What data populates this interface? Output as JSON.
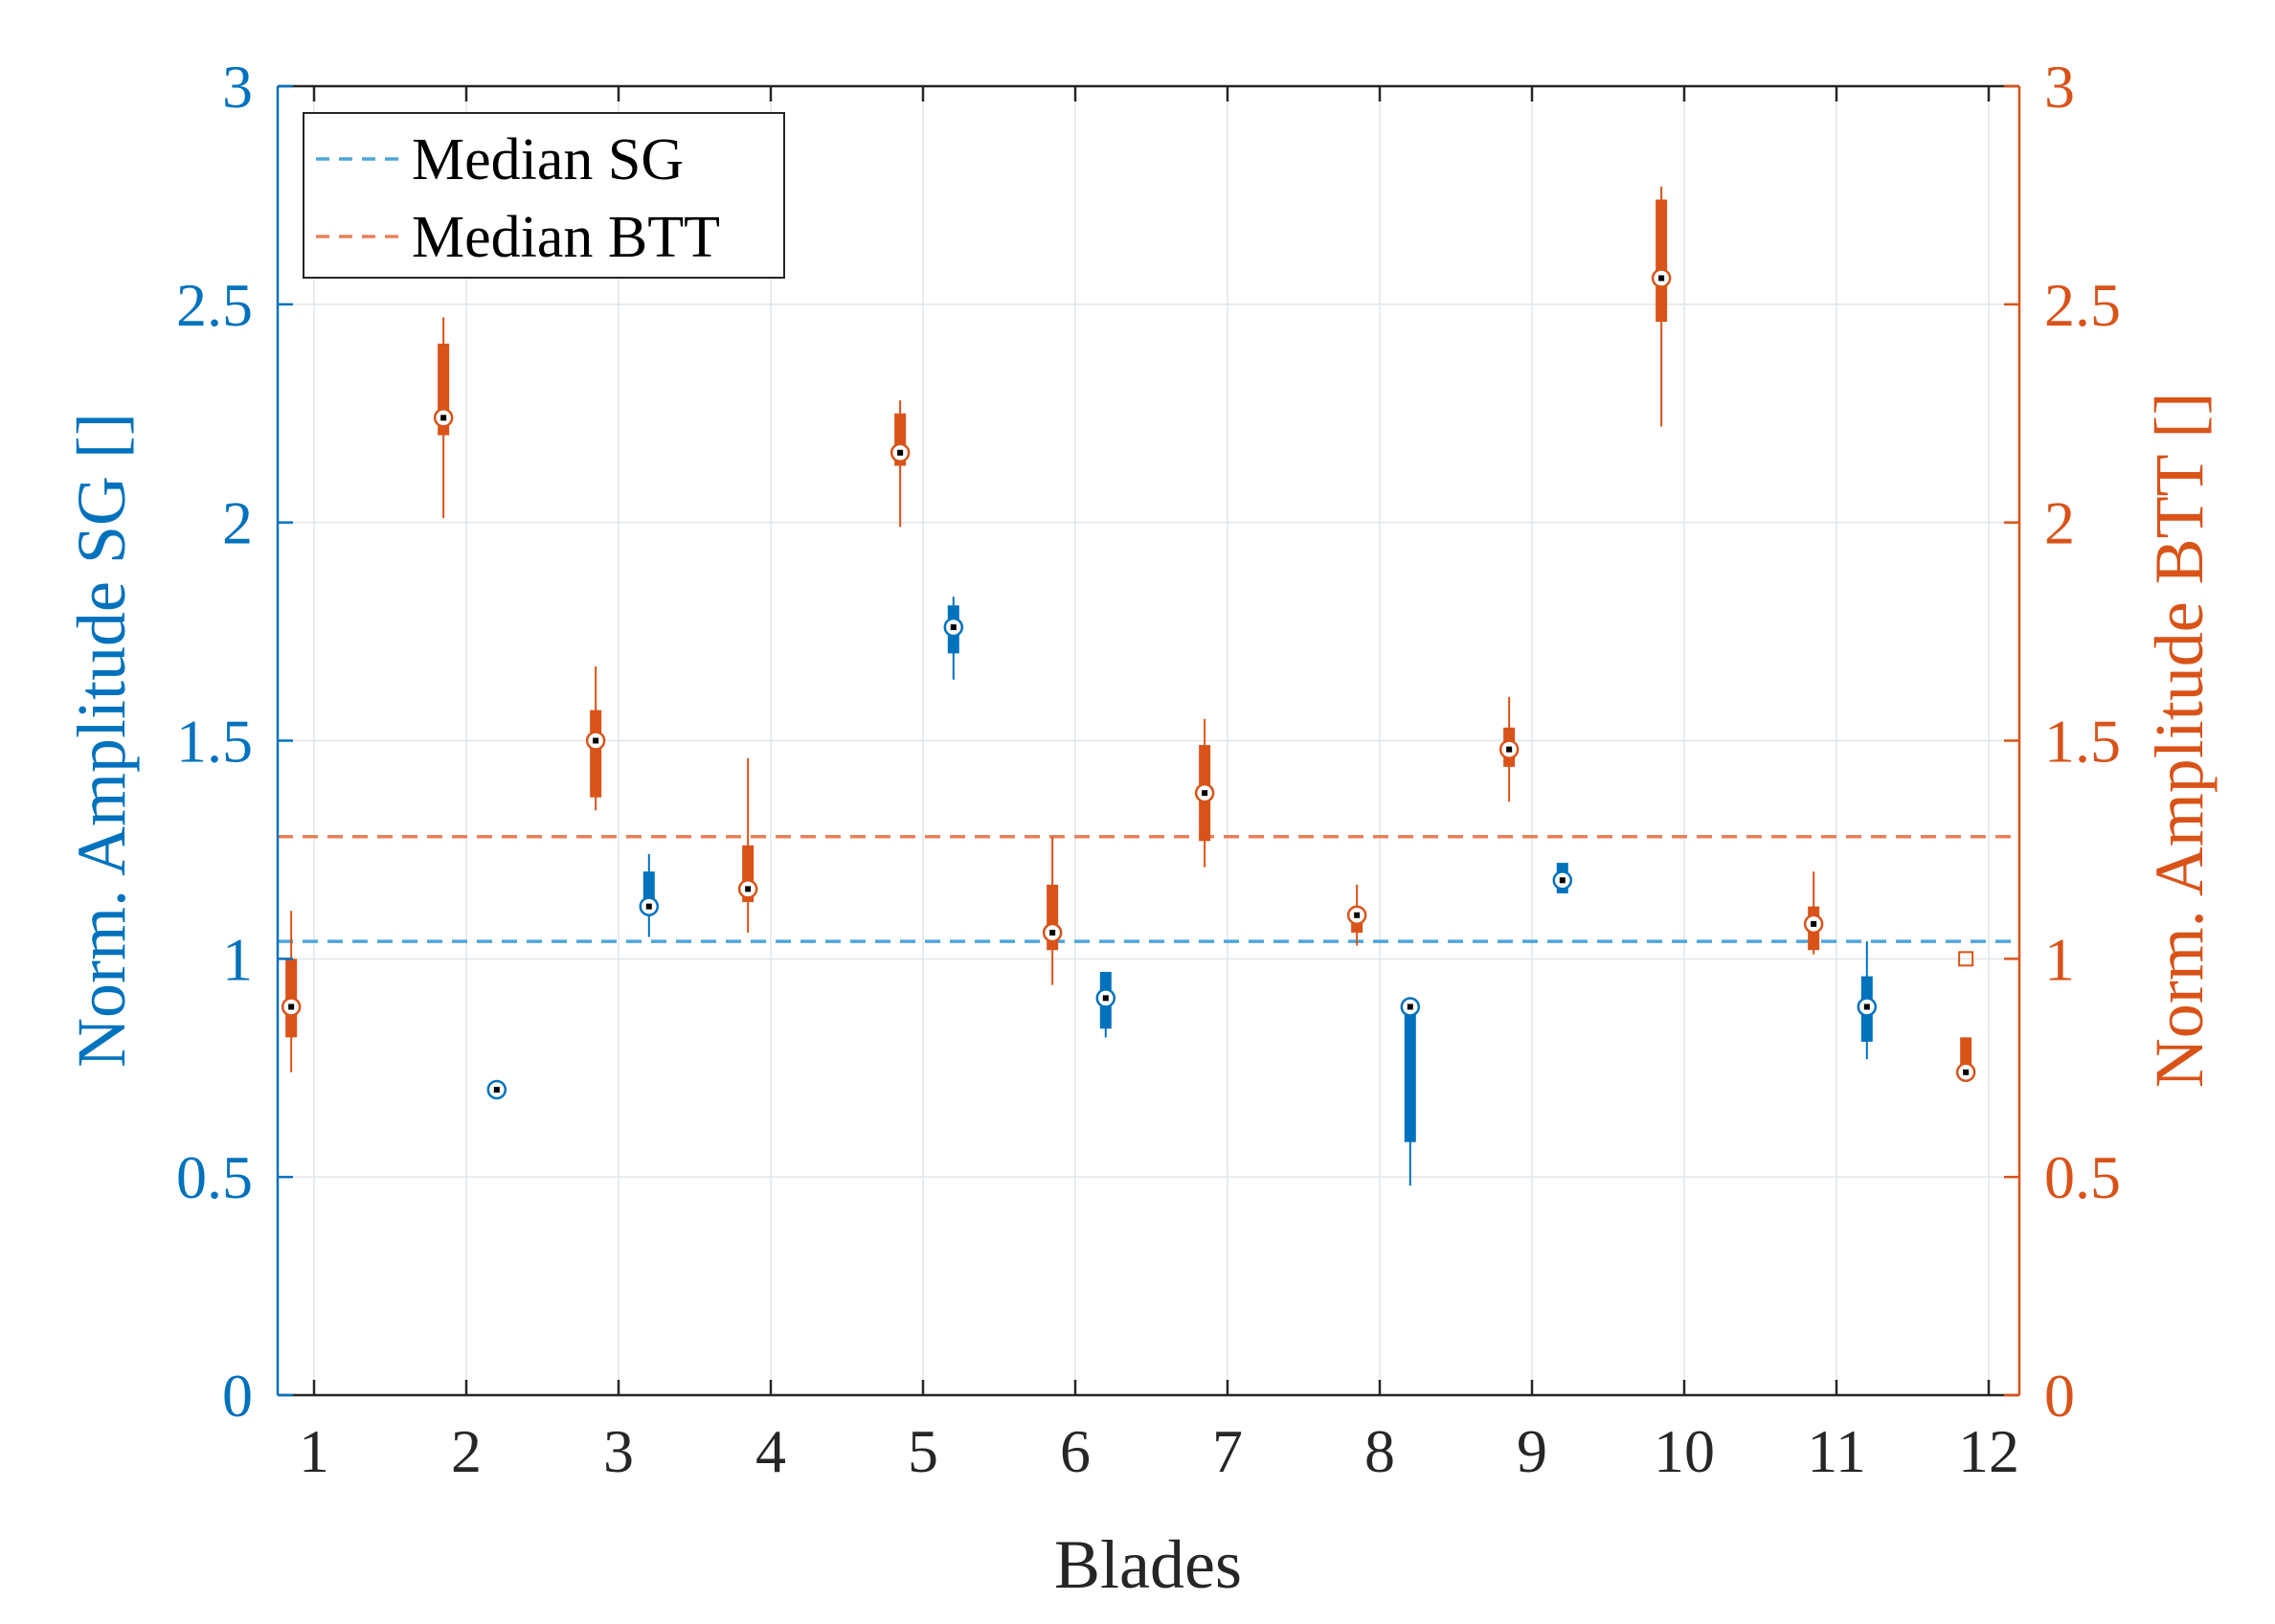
{
  "chart_data": {
    "type": "box",
    "xlabel": "Blades",
    "ylabel_left": "Norm. Amplitude SG []",
    "ylabel_right": "Norm. Amplitude BTT []",
    "categories": [
      "1",
      "2",
      "3",
      "4",
      "5",
      "6",
      "7",
      "8",
      "9",
      "10",
      "11",
      "12"
    ],
    "ylim": [
      0,
      3
    ],
    "yticks": [
      "0",
      "0.5",
      "1",
      "1.5",
      "2",
      "2.5",
      "3"
    ],
    "grid": true,
    "legend": {
      "placement": "top-left",
      "entries": [
        {
          "label": "Median SG",
          "series": "sg"
        },
        {
          "label": "Median BTT",
          "series": "btt"
        }
      ]
    },
    "colors": {
      "sg": "#0072BD",
      "btt": "#D95319",
      "sg_median_line": "#4DA6D9",
      "btt_median_line": "#E8805A"
    },
    "median_lines": {
      "sg": 1.04,
      "btt": 1.28
    },
    "series": [
      {
        "name": "SG",
        "key": "sg",
        "offset": 0.2,
        "boxes": [
          {
            "blade": 2,
            "median": 0.7,
            "q1": 0.7,
            "q3": 0.7,
            "wlo": 0.7,
            "whi": 0.7
          },
          {
            "blade": 3,
            "median": 1.12,
            "q1": 1.12,
            "q3": 1.2,
            "wlo": 1.05,
            "whi": 1.24
          },
          {
            "blade": 5,
            "median": 1.76,
            "q1": 1.7,
            "q3": 1.81,
            "wlo": 1.64,
            "whi": 1.83
          },
          {
            "blade": 6,
            "median": 0.91,
            "q1": 0.84,
            "q3": 0.97,
            "wlo": 0.82,
            "whi": 0.97
          },
          {
            "blade": 8,
            "median": 0.89,
            "q1": 0.58,
            "q3": 0.89,
            "wlo": 0.48,
            "whi": 0.89
          },
          {
            "blade": 9,
            "median": 1.18,
            "q1": 1.15,
            "q3": 1.22,
            "wlo": 1.15,
            "whi": 1.22
          },
          {
            "blade": 11,
            "median": 0.89,
            "q1": 0.81,
            "q3": 0.96,
            "wlo": 0.77,
            "whi": 1.04
          }
        ]
      },
      {
        "name": "BTT",
        "key": "btt",
        "offset": -0.15,
        "boxes": [
          {
            "blade": 1,
            "median": 0.89,
            "q1": 0.82,
            "q3": 1.0,
            "wlo": 0.74,
            "whi": 1.11
          },
          {
            "blade": 2,
            "median": 2.24,
            "q1": 2.2,
            "q3": 2.41,
            "wlo": 2.01,
            "whi": 2.47
          },
          {
            "blade": 3,
            "median": 1.5,
            "q1": 1.37,
            "q3": 1.57,
            "wlo": 1.34,
            "whi": 1.67
          },
          {
            "blade": 4,
            "median": 1.16,
            "q1": 1.13,
            "q3": 1.26,
            "wlo": 1.06,
            "whi": 1.46
          },
          {
            "blade": 5,
            "median": 2.16,
            "q1": 2.13,
            "q3": 2.25,
            "wlo": 1.99,
            "whi": 2.28
          },
          {
            "blade": 6,
            "median": 1.06,
            "q1": 1.02,
            "q3": 1.17,
            "wlo": 0.94,
            "whi": 1.28
          },
          {
            "blade": 7,
            "median": 1.38,
            "q1": 1.27,
            "q3": 1.49,
            "wlo": 1.21,
            "whi": 1.55
          },
          {
            "blade": 8,
            "median": 1.1,
            "q1": 1.06,
            "q3": 1.1,
            "wlo": 1.03,
            "whi": 1.17
          },
          {
            "blade": 9,
            "median": 1.48,
            "q1": 1.44,
            "q3": 1.53,
            "wlo": 1.36,
            "whi": 1.6
          },
          {
            "blade": 10,
            "median": 2.56,
            "q1": 2.46,
            "q3": 2.74,
            "wlo": 2.22,
            "whi": 2.77
          },
          {
            "blade": 11,
            "median": 1.08,
            "q1": 1.02,
            "q3": 1.12,
            "wlo": 1.01,
            "whi": 1.2
          },
          {
            "blade": 12,
            "median": 0.74,
            "q1": 0.74,
            "q3": 0.82,
            "wlo": 0.74,
            "whi": 0.82
          }
        ],
        "outliers": [
          {
            "blade": 12,
            "value": 1.0
          }
        ]
      }
    ]
  }
}
